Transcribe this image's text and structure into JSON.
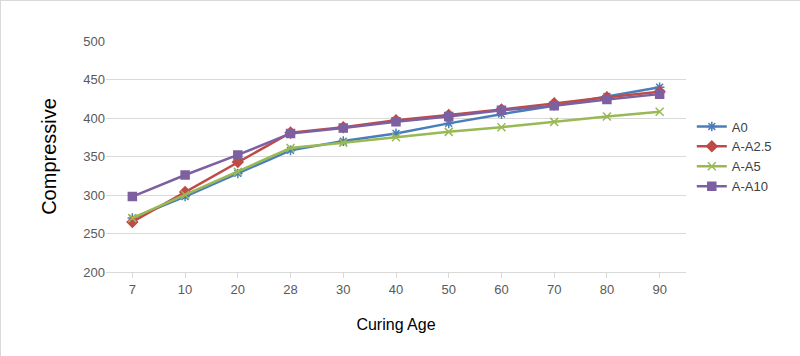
{
  "chart_data": {
    "type": "line",
    "x_label": "Curing Age",
    "y_label": "Compressive",
    "categories": [
      "7",
      "10",
      "20",
      "28",
      "30",
      "40",
      "50",
      "60",
      "70",
      "80",
      "90"
    ],
    "series": [
      {
        "name": "A0",
        "color": "#4a7ebb",
        "marker": "asterisk",
        "values": [
          270,
          298,
          328,
          358,
          370,
          380,
          393,
          405,
          416,
          428,
          440
        ]
      },
      {
        "name": "A-A2.5",
        "color": "#be4b48",
        "marker": "diamond",
        "values": [
          265,
          304,
          343,
          381,
          388,
          397,
          404,
          411,
          419,
          427,
          434
        ]
      },
      {
        "name": "A-A5",
        "color": "#98b954",
        "marker": "x",
        "values": [
          270,
          300,
          330,
          361,
          368,
          375,
          382,
          388,
          395,
          402,
          408
        ]
      },
      {
        "name": "A-A10",
        "color": "#7d60a0",
        "marker": "square",
        "values": [
          298,
          326,
          352,
          380,
          387,
          395,
          402,
          410,
          416,
          424,
          431
        ]
      }
    ],
    "ylim": [
      200,
      500
    ],
    "yticks": [
      200,
      250,
      300,
      350,
      400,
      450,
      500
    ],
    "grid": true,
    "legend": "right"
  }
}
